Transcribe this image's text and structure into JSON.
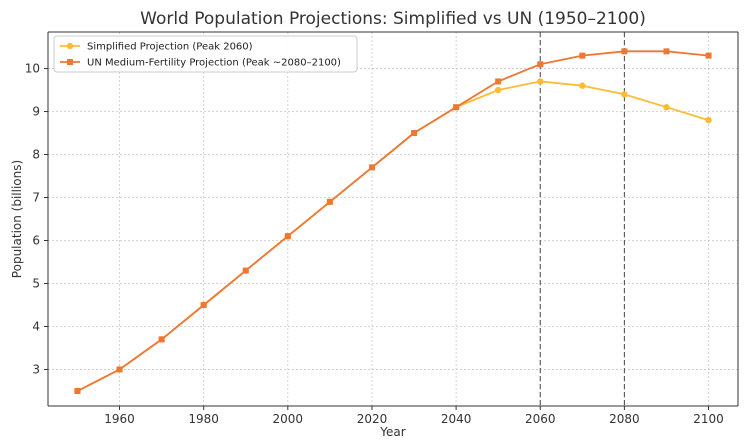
{
  "chart_data": {
    "type": "line",
    "title": "World Population Projections: Simplified vs UN (1950–2100)",
    "xlabel": "Year",
    "ylabel": "Population (billions)",
    "xlim": [
      1943,
      2107
    ],
    "ylim": [
      2.15,
      10.85
    ],
    "xticks": [
      1960,
      1980,
      2000,
      2020,
      2040,
      2060,
      2080,
      2100
    ],
    "yticks": [
      3,
      4,
      5,
      6,
      7,
      8,
      9,
      10
    ],
    "grid": true,
    "legend_position": "top-left",
    "vertical_lines": [
      2060,
      2080
    ],
    "x": [
      1950,
      1960,
      1970,
      1980,
      1990,
      2000,
      2010,
      2020,
      2030,
      2040,
      2050,
      2060,
      2070,
      2080,
      2090,
      2100
    ],
    "series": [
      {
        "name": "Simplified Projection (Peak 2060)",
        "color": "#FFBB33",
        "marker": "circle",
        "values": [
          2.5,
          3.0,
          3.7,
          4.5,
          5.3,
          6.1,
          6.9,
          7.7,
          8.5,
          9.1,
          9.5,
          9.7,
          9.6,
          9.4,
          9.1,
          8.8
        ]
      },
      {
        "name": "UN Medium-Fertility Projection (Peak ~2080–2100)",
        "color": "#EE7733",
        "marker": "square",
        "values": [
          2.5,
          3.0,
          3.7,
          4.5,
          5.3,
          6.1,
          6.9,
          7.7,
          8.5,
          9.1,
          9.7,
          10.1,
          10.3,
          10.4,
          10.4,
          10.3
        ]
      }
    ]
  }
}
